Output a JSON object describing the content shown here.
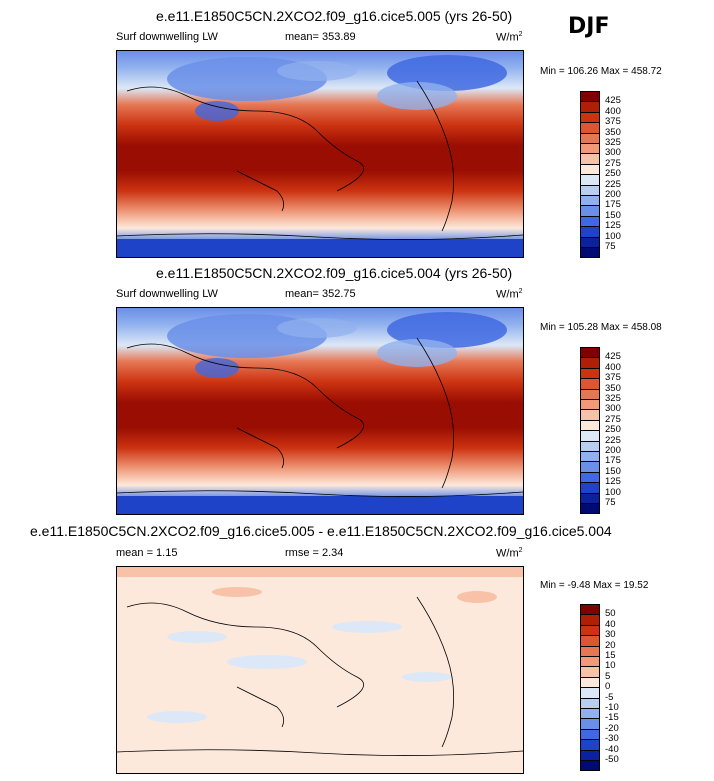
{
  "season": "DJF",
  "panels": [
    {
      "title": "e.e11.E1850C5CN.2XCO2.f09_g16.cice5.005 (yrs 26-50)",
      "variable": "Surf downwelling LW",
      "stat_text": "mean= 353.89",
      "units": "W/m",
      "units_sup": "2",
      "minmax": "Min = 106.26 Max = 458.72",
      "colorbar": {
        "labels": [
          "425",
          "400",
          "375",
          "350",
          "325",
          "300",
          "275",
          "250",
          "225",
          "200",
          "175",
          "150",
          "125",
          "100",
          "75"
        ],
        "colors": [
          "#800000",
          "#b01e06",
          "#cc3311",
          "#dd5533",
          "#e67755",
          "#f09a7a",
          "#f7c2a8",
          "#fde9dc",
          "#dce8f7",
          "#b9cff2",
          "#91b1ee",
          "#6a8fe8",
          "#4068e0",
          "#1f43c8",
          "#0b22a0",
          "#000a73"
        ]
      }
    },
    {
      "title": "e.e11.E1850C5CN.2XCO2.f09_g16.cice5.004 (yrs 26-50)",
      "variable": "Surf downwelling LW",
      "stat_text": "mean= 352.75",
      "units": "W/m",
      "units_sup": "2",
      "minmax": "Min = 105.28 Max = 458.08",
      "colorbar": {
        "labels": [
          "425",
          "400",
          "375",
          "350",
          "325",
          "300",
          "275",
          "250",
          "225",
          "200",
          "175",
          "150",
          "125",
          "100",
          "75"
        ],
        "colors": [
          "#800000",
          "#b01e06",
          "#cc3311",
          "#dd5533",
          "#e67755",
          "#f09a7a",
          "#f7c2a8",
          "#fde9dc",
          "#dce8f7",
          "#b9cff2",
          "#91b1ee",
          "#6a8fe8",
          "#4068e0",
          "#1f43c8",
          "#0b22a0",
          "#000a73"
        ]
      }
    },
    {
      "title": "e.e11.E1850C5CN.2XCO2.f09_g16.cice5.005 - e.e11.E1850C5CN.2XCO2.f09_g16.cice5.004",
      "variable": "mean =  1.15",
      "stat_text": "rmse =  2.34",
      "units": "W/m",
      "units_sup": "2",
      "minmax": "Min =  -9.48 Max =  19.52",
      "colorbar": {
        "labels": [
          "50",
          "40",
          "30",
          "20",
          "15",
          "10",
          "5",
          "0",
          "-5",
          "-10",
          "-15",
          "-20",
          "-30",
          "-40",
          "-50"
        ],
        "colors": [
          "#800000",
          "#b01e06",
          "#cc3311",
          "#dd5533",
          "#e67755",
          "#f09a7a",
          "#f7c2a8",
          "#fde9dc",
          "#dce8f7",
          "#b9cff2",
          "#91b1ee",
          "#6a8fe8",
          "#4068e0",
          "#1f43c8",
          "#0b22a0",
          "#000a73"
        ]
      }
    }
  ],
  "chart_data": [
    {
      "type": "heatmap",
      "title": "e.e11.E1850C5CN.2XCO2.f09_g16.cice5.005 (yrs 26-50)",
      "variable": "Surf downwelling LW",
      "season": "DJF",
      "mean": 353.89,
      "min": 106.26,
      "max": 458.72,
      "units": "W/m2",
      "contour_levels": [
        75,
        100,
        125,
        150,
        175,
        200,
        225,
        250,
        275,
        300,
        325,
        350,
        375,
        400,
        425
      ]
    },
    {
      "type": "heatmap",
      "title": "e.e11.E1850C5CN.2XCO2.f09_g16.cice5.004 (yrs 26-50)",
      "variable": "Surf downwelling LW",
      "season": "DJF",
      "mean": 352.75,
      "min": 105.28,
      "max": 458.08,
      "units": "W/m2",
      "contour_levels": [
        75,
        100,
        125,
        150,
        175,
        200,
        225,
        250,
        275,
        300,
        325,
        350,
        375,
        400,
        425
      ]
    },
    {
      "type": "heatmap",
      "title": "e.e11.E1850C5CN.2XCO2.f09_g16.cice5.005 - e.e11.E1850C5CN.2XCO2.f09_g16.cice5.004",
      "season": "DJF",
      "mean": 1.15,
      "rmse": 2.34,
      "min": -9.48,
      "max": 19.52,
      "units": "W/m2",
      "contour_levels": [
        -50,
        -40,
        -30,
        -20,
        -15,
        -10,
        -5,
        0,
        5,
        10,
        15,
        20,
        30,
        40,
        50
      ]
    }
  ]
}
